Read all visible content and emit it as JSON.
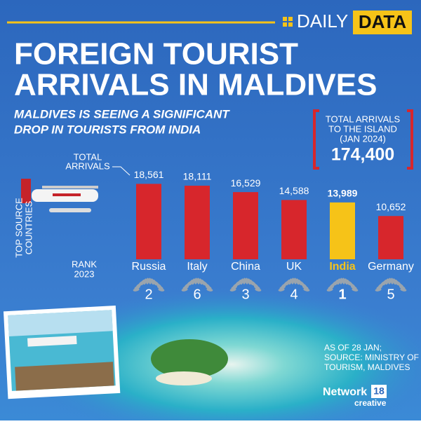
{
  "header": {
    "brand_left": "DAILY",
    "brand_right": "DATA"
  },
  "chart_data": {
    "type": "bar",
    "title": [
      "FOREIGN TOURIST",
      "ARRIVALS IN MALDIVES"
    ],
    "subtitle": [
      "MALDIVES IS SEEING A SIGNIFICANT",
      "DROP IN TOURISTS FROM INDIA"
    ],
    "value_axis_label": [
      "TOTAL",
      "ARRIVALS"
    ],
    "category_axis_label": [
      "TOP SOURCE",
      "COUNTRIES"
    ],
    "categories": [
      "Russia",
      "Italy",
      "China",
      "UK",
      "India",
      "Germany"
    ],
    "values": [
      18561,
      18111,
      16529,
      14588,
      13989,
      10652
    ],
    "value_labels": [
      "18,561",
      "18,111",
      "16,529",
      "14,588",
      "13,989",
      "10,652"
    ],
    "colors": [
      "#d7262c",
      "#d7262c",
      "#d7262c",
      "#d7262c",
      "#f6c318",
      "#d7262c"
    ],
    "rank_label": [
      "RANK",
      "2023"
    ],
    "ranks": [
      2,
      6,
      3,
      4,
      1,
      5
    ],
    "total_box": {
      "label": [
        "TOTAL ARRIVALS",
        "TO THE ISLAND",
        "(JAN 2024)"
      ],
      "value": "174,400"
    },
    "source": [
      "AS OF 28 JAN;",
      "SOURCE: MINISTRY OF",
      "TOURISM, MALDIVES"
    ]
  },
  "footer": {
    "logo": "Network",
    "logo_number": "18",
    "logo_sub": "creative"
  }
}
